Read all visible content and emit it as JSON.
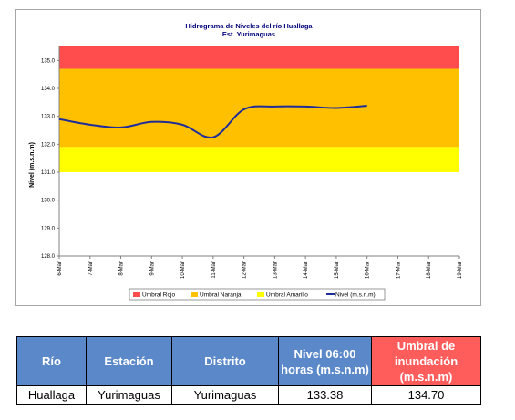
{
  "chart_data": {
    "type": "line",
    "title": "Hidrograma de Niveles del río Huallaga",
    "subtitle": "Est. Yurimaguas",
    "ylabel": "Nivel (m.s.n.m)",
    "xlabel": "",
    "ylim": [
      128.0,
      135.5
    ],
    "y_ticks": [
      "128.0",
      "129.0",
      "130.0",
      "131.0",
      "132.0",
      "133.0",
      "134.0",
      "135.0"
    ],
    "categories": [
      "6-Mar",
      "7-Mar",
      "8-Mar",
      "9-Mar",
      "10-Mar",
      "11-Mar",
      "12-Mar",
      "13-Mar",
      "14-Mar",
      "15-Mar",
      "16-Mar",
      "17-Mar",
      "18-Mar",
      "19-Mar"
    ],
    "bands": [
      {
        "name": "Umbral Rojo",
        "from": 134.7,
        "to": 135.5,
        "color": "#ff4d4d"
      },
      {
        "name": "Umbral Naranja",
        "from": 131.9,
        "to": 134.7,
        "color": "#ffc000"
      },
      {
        "name": "Umbral Amarillo",
        "from": 131.0,
        "to": 131.9,
        "color": "#ffff00"
      }
    ],
    "series": [
      {
        "name": "Nivel (m.s.n.m)",
        "color": "#1f2d99",
        "values": [
          132.9,
          132.7,
          132.6,
          132.8,
          132.7,
          132.25,
          133.25,
          133.35,
          133.35,
          133.3,
          133.38,
          null,
          null,
          null
        ]
      }
    ],
    "legend": {
      "position": "bottom",
      "items": [
        "Umbral Rojo",
        "Umbral Naranja",
        "Umbral Amarillo",
        "Nivel (m.s.n.m)"
      ]
    },
    "grid": false
  },
  "table": {
    "headers": [
      {
        "text": "Río",
        "color": "#5b88c9"
      },
      {
        "text": "Estación",
        "color": "#5b88c9"
      },
      {
        "text": "Distrito",
        "color": "#5b88c9"
      },
      {
        "text": "Nivel 06:00 horas (m.s.n.m)",
        "color": "#5b88c9"
      },
      {
        "text": "Umbral de inundación (m.s.n.m)",
        "color": "#ff5c5c"
      }
    ],
    "row": [
      "Huallaga",
      "Yurimaguas",
      "Yurimaguas",
      "133.38",
      "134.70"
    ]
  }
}
